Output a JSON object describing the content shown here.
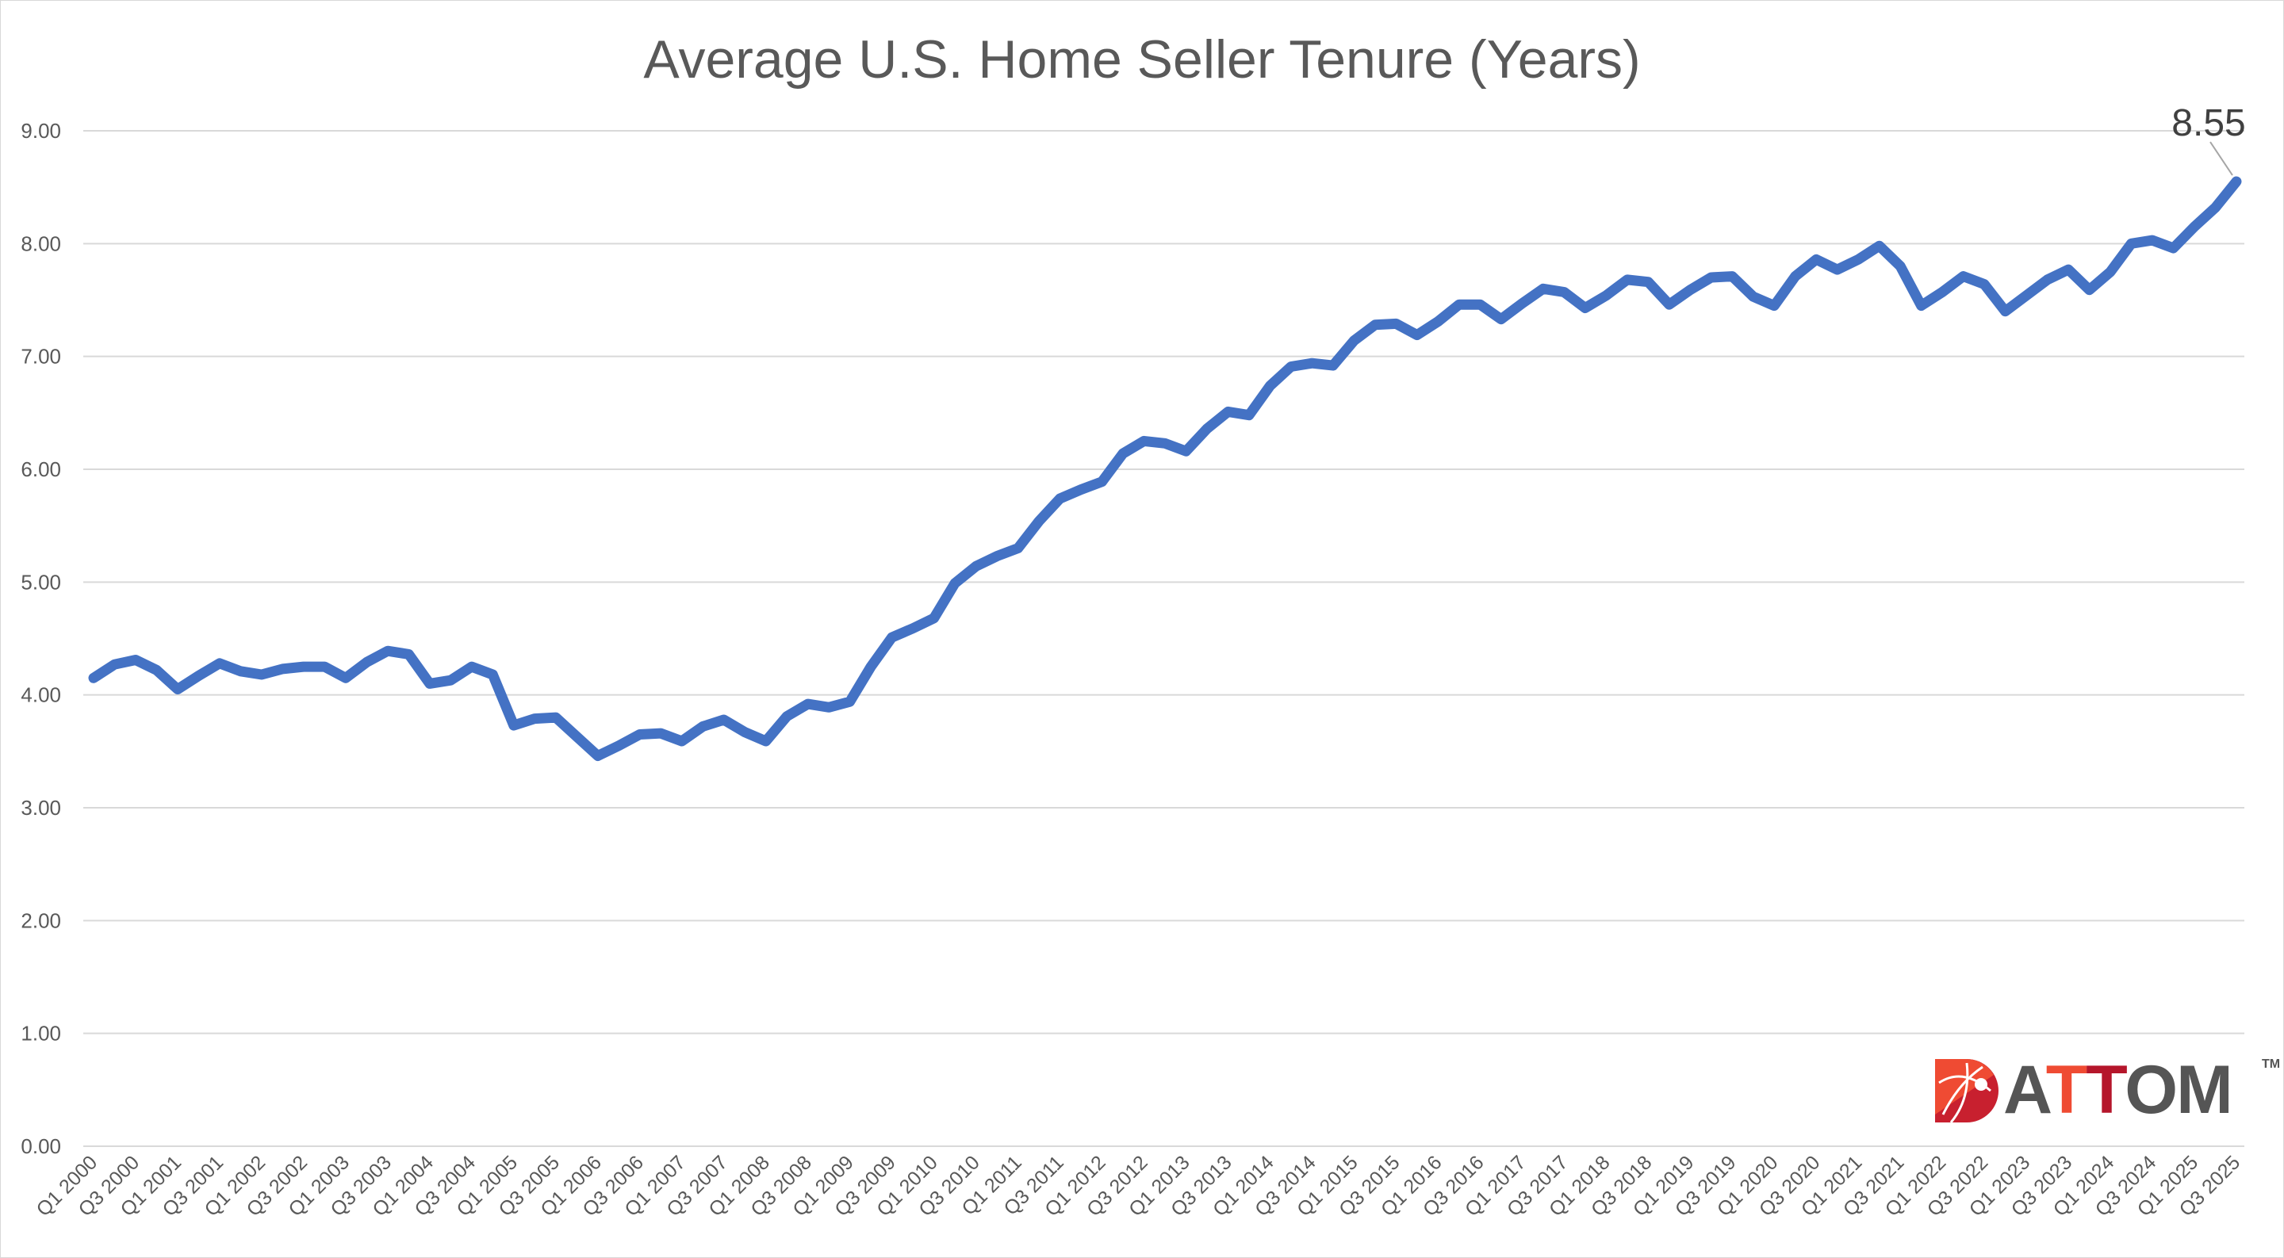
{
  "chart_data": {
    "type": "line",
    "title": "Average U.S. Home Seller Tenure (Years)",
    "xlabel": "",
    "ylabel": "",
    "ylim": [
      0,
      9
    ],
    "yticks": [
      "0.00",
      "1.00",
      "2.00",
      "3.00",
      "4.00",
      "5.00",
      "6.00",
      "7.00",
      "8.00",
      "9.00"
    ],
    "grid": true,
    "legend": "none",
    "line_color": "#4472C4",
    "categories": [
      "Q1 2000",
      "Q2 2000",
      "Q3 2000",
      "Q4 2000",
      "Q1 2001",
      "Q2 2001",
      "Q3 2001",
      "Q4 2001",
      "Q1 2002",
      "Q2 2002",
      "Q3 2002",
      "Q4 2002",
      "Q1 2003",
      "Q2 2003",
      "Q3 2003",
      "Q4 2003",
      "Q1 2004",
      "Q2 2004",
      "Q3 2004",
      "Q4 2004",
      "Q1 2005",
      "Q2 2005",
      "Q3 2005",
      "Q4 2005",
      "Q1 2006",
      "Q2 2006",
      "Q3 2006",
      "Q4 2006",
      "Q1 2007",
      "Q2 2007",
      "Q3 2007",
      "Q4 2007",
      "Q1 2008",
      "Q2 2008",
      "Q3 2008",
      "Q4 2008",
      "Q1 2009",
      "Q2 2009",
      "Q3 2009",
      "Q4 2009",
      "Q1 2010",
      "Q2 2010",
      "Q3 2010",
      "Q4 2010",
      "Q1 2011",
      "Q2 2011",
      "Q3 2011",
      "Q4 2011",
      "Q1 2012",
      "Q2 2012",
      "Q3 2012",
      "Q4 2012",
      "Q1 2013",
      "Q2 2013",
      "Q3 2013",
      "Q4 2013",
      "Q1 2014",
      "Q2 2014",
      "Q3 2014",
      "Q4 2014",
      "Q1 2015",
      "Q2 2015",
      "Q3 2015",
      "Q4 2015",
      "Q1 2016",
      "Q2 2016",
      "Q3 2016",
      "Q4 2016",
      "Q1 2017",
      "Q2 2017",
      "Q3 2017",
      "Q4 2017",
      "Q1 2018",
      "Q2 2018",
      "Q3 2018",
      "Q4 2018",
      "Q1 2019",
      "Q2 2019",
      "Q3 2019",
      "Q4 2019",
      "Q1 2020",
      "Q2 2020",
      "Q3 2020",
      "Q4 2020",
      "Q1 2021",
      "Q2 2021",
      "Q3 2021",
      "Q4 2021",
      "Q1 2022",
      "Q2 2022",
      "Q3 2022",
      "Q4 2022",
      "Q1 2023",
      "Q2 2023",
      "Q3 2023",
      "Q4 2023",
      "Q1 2024",
      "Q2 2024",
      "Q3 2024",
      "Q4 2024",
      "Q1 2025",
      "Q2 2025",
      "Q3 2025"
    ],
    "tick_every": 2,
    "series": [
      {
        "name": "Average U.S. Home Seller Tenure (Years)",
        "values": [
          4.15,
          4.27,
          4.31,
          4.22,
          4.05,
          4.17,
          4.28,
          4.21,
          4.18,
          4.23,
          4.25,
          4.25,
          4.15,
          4.29,
          4.39,
          4.36,
          4.1,
          4.13,
          4.25,
          4.18,
          3.73,
          3.79,
          3.8,
          3.63,
          3.46,
          3.55,
          3.65,
          3.66,
          3.59,
          3.72,
          3.78,
          3.67,
          3.59,
          3.81,
          3.92,
          3.89,
          3.94,
          4.25,
          4.51,
          4.59,
          4.68,
          4.99,
          5.14,
          5.23,
          5.3,
          5.54,
          5.74,
          5.82,
          5.89,
          6.14,
          6.25,
          6.23,
          6.16,
          6.36,
          6.51,
          6.48,
          6.74,
          6.91,
          6.94,
          6.92,
          7.14,
          7.28,
          7.29,
          7.19,
          7.31,
          7.46,
          7.46,
          7.33,
          7.47,
          7.6,
          7.57,
          7.43,
          7.54,
          7.68,
          7.66,
          7.46,
          7.59,
          7.7,
          7.71,
          7.53,
          7.45,
          7.71,
          7.86,
          7.77,
          7.86,
          7.98,
          7.8,
          7.45,
          7.57,
          7.71,
          7.64,
          7.4,
          7.54,
          7.68,
          7.77,
          7.59,
          7.75,
          8.0,
          8.03,
          7.96,
          8.15,
          8.32,
          8.55
        ]
      }
    ],
    "annotations": [
      {
        "category": "Q3 2025",
        "text": "8.55"
      }
    ]
  },
  "logo": {
    "text_a": "A",
    "text_t1": "T",
    "text_t2": "T",
    "text_om": "OM",
    "tm": "TM",
    "brand": "ATTOM"
  }
}
